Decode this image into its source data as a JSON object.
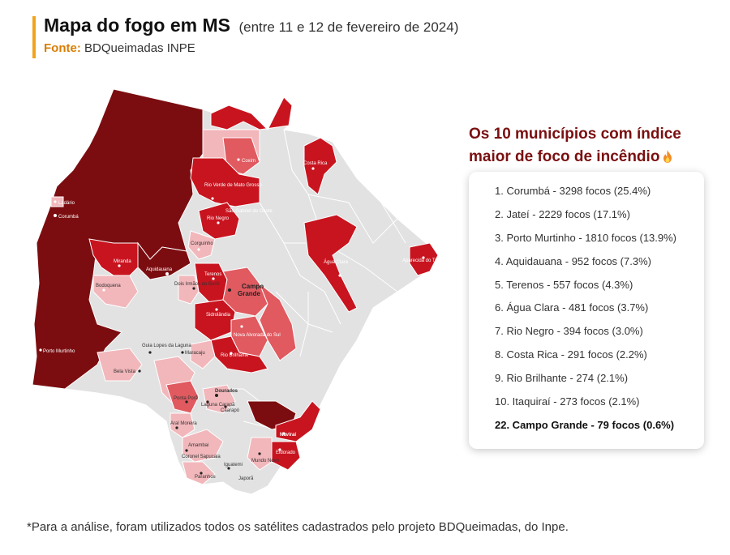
{
  "header": {
    "title": "Mapa do fogo em MS",
    "subtitle": "(entre 11 e 12 de fevereiro de 2024)",
    "source_label": "Fonte:",
    "source_value": "BDQueimadas INPE"
  },
  "ranking": {
    "title": "Os 10 municípios com índice maior de foco de incêndio",
    "fire_icon": "fire-icon",
    "items": [
      "1. Corumbá - 3298 focos (25.4%)",
      "2. Jateí - 2229 focos (17.1%)",
      "3. Porto Murtinho - 1810 focos (13.9%)",
      "4. Aquidauana - 952 focos (7.3%)",
      "5. Terenos - 557 focos (4.3%)",
      "6. Água Clara - 481 focos (3.7%)",
      "7. Rio Negro - 394 focos (3.0%)",
      "8. Costa Rica - 291 focos (2.2%)",
      "9. Rio Brilhante - 274 (2.1%)",
      "10. Itaquiraí - 273 focos (2.1%)",
      "22. Campo Grande - 79 focos (0.6%)"
    ]
  },
  "map": {
    "colors": {
      "none": "#e2e2e2",
      "low": "#f2b7bb",
      "medium": "#e05a60",
      "high": "#c8141f",
      "very_high": "#7b0d10",
      "border": "#ffffff"
    },
    "labels": {
      "corumba": "Corumbá",
      "ladario": "Ladário",
      "aquidauana": "Aquidauana",
      "miranda": "Miranda",
      "campo_grande": "Campo Grande",
      "porto_murtinho": "Porto Murtinho",
      "coxim": "Coxim",
      "costa_rica": "Costa Rica",
      "agua_clara": "Água Clara",
      "aparecida_taboado": "Aparecida do Taboado",
      "rio_verde": "Rio Verde de Mato Grosso",
      "sao_gabriel": "São Gabriel do Oeste",
      "rio_negro": "Rio Negro",
      "corguinho": "Corguinho",
      "bodoquena": "Bodoquena",
      "dois_irmaos": "Dois Irmãos do Buriti",
      "terenos": "Terenos",
      "sidrolandia": "Sidrolândia",
      "nova_alvorada": "Nova Alvorada do Sul",
      "rio_brilhante": "Rio Brilhante",
      "guia_lopes": "Guia Lopes da Laguna",
      "maracaju": "Maracaju",
      "bela_vista": "Bela Vista",
      "dourados": "Dourados",
      "ponta_pora": "Ponta Porã",
      "laguna_carapa": "Laguna Carapã",
      "caarapo": "Caarapó",
      "aral_moreira": "Aral Moreira",
      "navirai": "Naviraí",
      "amambai": "Amambai",
      "coronel_sapucaia": "Coronel Sapucaia",
      "paranhos": "Paranhos",
      "eldorado": "Eldorado",
      "iguatemi": "Iguatemi",
      "mundo_novo": "Mundo Novo",
      "japora": "Japorã"
    }
  },
  "note": "*Para a análise, foram utilizados todos os satélites cadastrados pelo projeto BDQueimadas, do Inpe."
}
